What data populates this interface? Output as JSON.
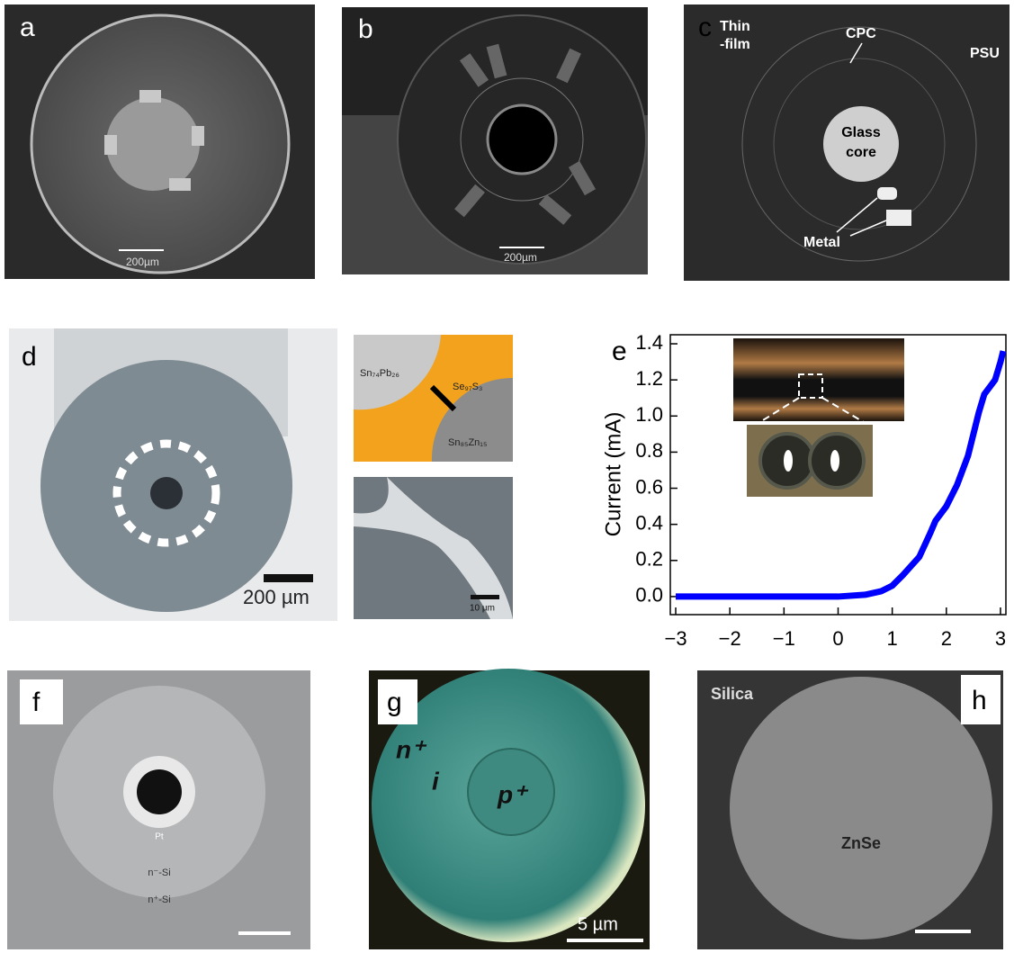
{
  "panels": {
    "a": {
      "label": "a",
      "scale_bar": "200µm"
    },
    "b": {
      "label": "b",
      "scale_bar": "200µm"
    },
    "c": {
      "label": "c",
      "thin_film": [
        "Thin",
        "-film"
      ],
      "cpc": "CPC",
      "psu": "PSU",
      "glass_core": [
        "Glass",
        "core"
      ],
      "metal": "Metal"
    },
    "d": {
      "label": "d",
      "scale_bar": "200 µm",
      "inset_top": [
        "Sn₇₄Pb₂₆",
        "Se₉₇S₃",
        "Sn₈₅Zn₁₅"
      ],
      "inset_bottom_scale_bar": "10 µm"
    },
    "e": {
      "label": "e"
    },
    "f": {
      "label": "f",
      "layers": [
        "Pt",
        "n⁻-Si",
        "n⁺-Si"
      ]
    },
    "g": {
      "label": "g",
      "layers": [
        "n⁺",
        "i",
        "p⁺"
      ],
      "scale_bar": "5 µm"
    },
    "h": {
      "label": "h",
      "silica": "Silica",
      "znse": "ZnSe"
    }
  },
  "chart_data": {
    "type": "line",
    "y_label": "Current (mA)",
    "x": [
      -3,
      -2,
      -1,
      0,
      0.5,
      0.8,
      1,
      1.2,
      1.5,
      1.7,
      1.8,
      2,
      2.2,
      2.4,
      2.5,
      2.6,
      2.7,
      2.8,
      2.9,
      3.0,
      3.05
    ],
    "series": [
      {
        "color": "#0000ff",
        "values": [
          0,
          0,
          0,
          0,
          0.01,
          0.03,
          0.06,
          0.12,
          0.22,
          0.35,
          0.42,
          0.5,
          0.62,
          0.78,
          0.9,
          1.02,
          1.12,
          1.16,
          1.2,
          1.3,
          1.36
        ]
      }
    ],
    "xlim": [
      -3.1,
      3.1
    ],
    "ylim": [
      -0.1,
      1.45
    ],
    "xticks": [
      {
        "value": -3,
        "label": "−3"
      },
      {
        "value": -2,
        "label": "−2"
      },
      {
        "value": -1,
        "label": "−1"
      },
      0,
      1,
      2,
      3
    ],
    "yticks": [
      {
        "value": 0,
        "label": "0.0"
      },
      {
        "value": 0.2,
        "label": "0.2"
      },
      {
        "value": 0.4,
        "label": "0.4"
      },
      {
        "value": 0.6,
        "label": "0.6"
      },
      {
        "value": 0.8,
        "label": "0.8"
      },
      {
        "value": 1,
        "label": "1.0"
      },
      {
        "value": 1.2,
        "label": "1.2"
      },
      {
        "value": 1.4,
        "label": "1.4"
      }
    ]
  }
}
